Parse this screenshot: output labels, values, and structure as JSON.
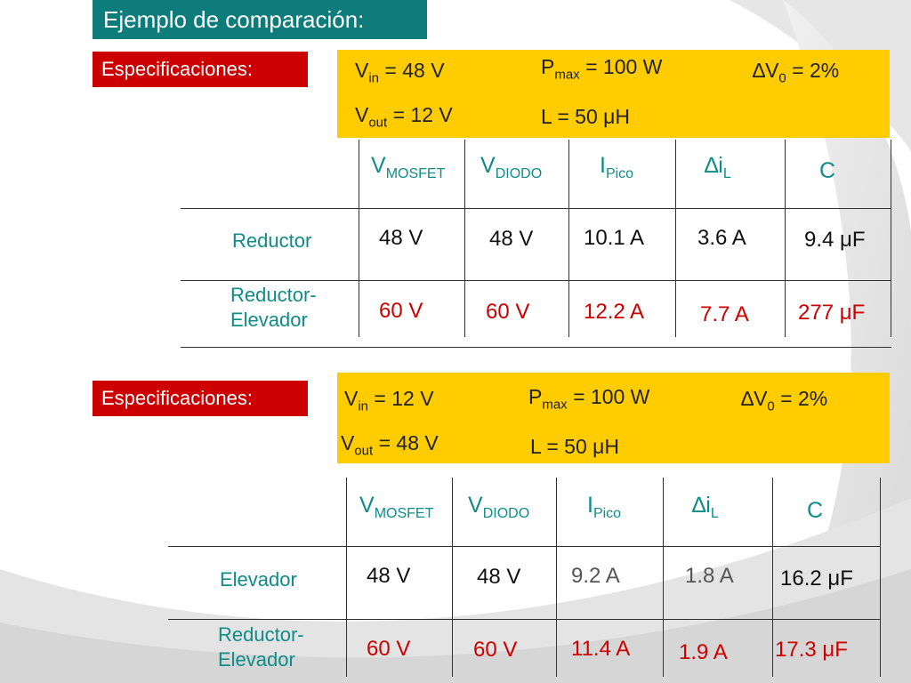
{
  "title": "Ejemplo de comparación:",
  "colors": {
    "title_bg": "#0e7c7a",
    "spec_label_bg": "#cc0000",
    "spec_box_bg": "#ffcc00",
    "header_text": "#0e8c88",
    "highlight_text": "#cc0000"
  },
  "spec1": {
    "label": "Especificaciones:",
    "vin": {
      "sym": "V",
      "sub": "in",
      "val": " = 48 V"
    },
    "vout": {
      "sym": "V",
      "sub": "out",
      "val": " = 12 V"
    },
    "pmax": {
      "sym": "P",
      "sub": "max",
      "val": " = 100 W"
    },
    "l": "L = 50 μH",
    "dv": {
      "sym": "∆V",
      "sub": "0",
      "val": " = 2%"
    }
  },
  "table1": {
    "headers": [
      {
        "sym": "V",
        "sub": "MOSFET"
      },
      {
        "sym": "V",
        "sub": "DIODO"
      },
      {
        "sym": "I",
        "sub": "Pico"
      },
      {
        "sym": "∆i",
        "sub": "L"
      },
      {
        "sym": "C",
        "sub": ""
      }
    ],
    "rows": [
      {
        "label": "Reductor",
        "cells": [
          "48 V",
          "48 V",
          "10.1 A",
          "3.6 A",
          "9.4 μF"
        ]
      },
      {
        "label_line1": "Reductor-",
        "label_line2": "Elevador",
        "cells": [
          "60 V",
          "60 V",
          "12.2 A",
          "7.7 A",
          "277 μF"
        ]
      }
    ]
  },
  "spec2": {
    "label": "Especificaciones:",
    "vin": {
      "sym": "V",
      "sub": "in",
      "val": " = 12 V"
    },
    "vout": {
      "sym": "V",
      "sub": "out",
      "val": " = 48 V"
    },
    "pmax": {
      "sym": "P",
      "sub": "max",
      "val": " = 100 W"
    },
    "l": "L = 50 μH",
    "dv": {
      "sym": "∆V",
      "sub": "0",
      "val": " = 2%"
    }
  },
  "table2": {
    "headers": [
      {
        "sym": "V",
        "sub": "MOSFET"
      },
      {
        "sym": "V",
        "sub": "DIODO"
      },
      {
        "sym": "I",
        "sub": "Pico"
      },
      {
        "sym": "∆i",
        "sub": "L"
      },
      {
        "sym": "C",
        "sub": ""
      }
    ],
    "rows": [
      {
        "label": "Elevador",
        "cells": [
          "48 V",
          "48 V",
          "9.2 A",
          "1.8 A",
          "16.2 μF"
        ]
      },
      {
        "label_line1": "Reductor-",
        "label_line2": "Elevador",
        "cells": [
          "60 V",
          "60 V",
          "11.4 A",
          "1.9 A",
          "17.3 μF"
        ]
      }
    ]
  }
}
